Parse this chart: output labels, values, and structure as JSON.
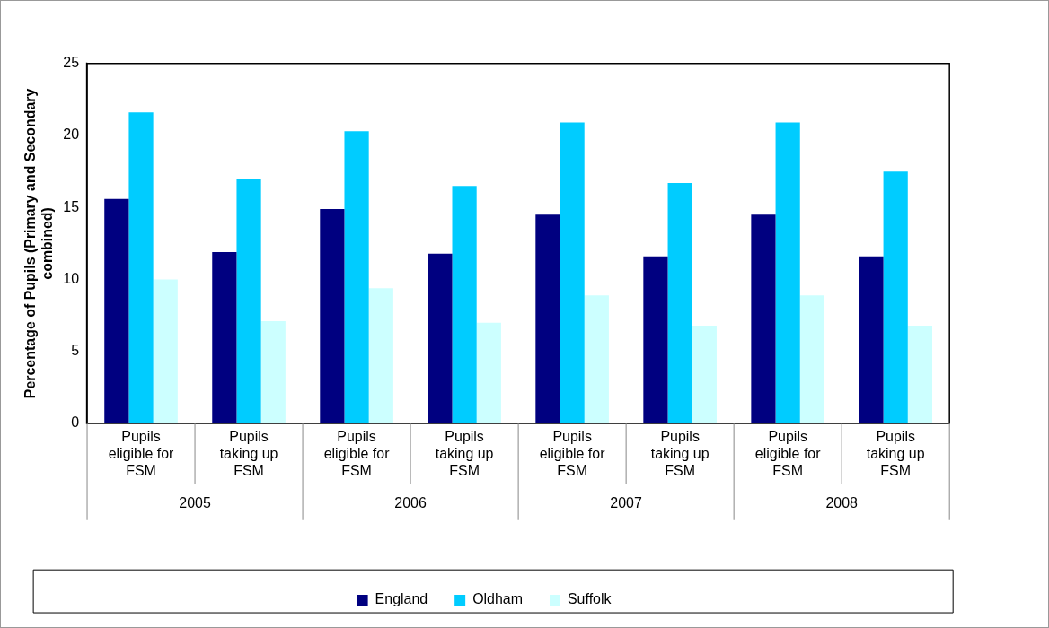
{
  "chart_data": {
    "type": "bar",
    "ylabel": "Percentage of Pupils (Primary and Secondary combined)",
    "categories": [
      "Pupils eligible for FSM",
      "Pupils taking up FSM",
      "Pupils eligible for FSM",
      "Pupils taking up FSM",
      "Pupils eligible for FSM",
      "Pupils taking up FSM",
      "Pupils eligible for FSM",
      "Pupils taking up FSM"
    ],
    "annotations": [
      "2005",
      "2006",
      "2007",
      "2008"
    ],
    "series": [
      {
        "name": "England",
        "color": "#000080",
        "values": [
          15.6,
          11.9,
          14.9,
          11.8,
          14.5,
          11.6,
          14.5,
          11.6
        ]
      },
      {
        "name": "Oldham",
        "color": "#00ccff",
        "values": [
          21.6,
          17.0,
          20.3,
          16.5,
          20.9,
          16.7,
          20.9,
          17.5
        ]
      },
      {
        "name": "Suffolk",
        "color": "#ccffff",
        "values": [
          10.0,
          7.1,
          9.4,
          7.0,
          8.9,
          6.8,
          8.9,
          6.8
        ]
      }
    ],
    "ylim": [
      0,
      25
    ],
    "yticks": [
      0,
      5,
      10,
      15,
      20,
      25
    ],
    "grid": false,
    "legend": "bottom"
  }
}
